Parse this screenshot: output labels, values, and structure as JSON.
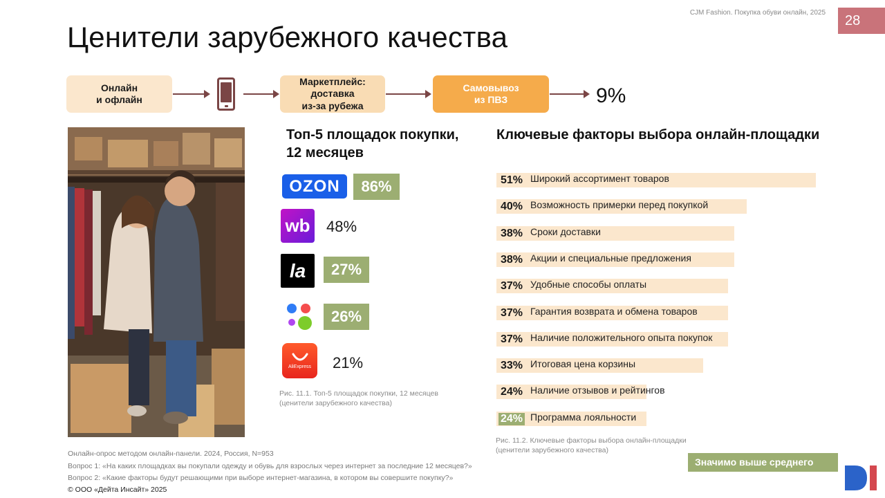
{
  "header": {
    "note": "CJM Fashion. Покупка обуви онлайн, 2025",
    "page_number": "28"
  },
  "title": "Ценители зарубежного качества",
  "flow": {
    "step1": [
      "Онлайн",
      "и офлайн"
    ],
    "step3": [
      "Маркетплейс:",
      "доставка",
      "из-за рубежа"
    ],
    "step4": [
      "Самовывоз",
      "из ПВЗ"
    ],
    "percent": "9%"
  },
  "platforms": {
    "title": [
      "Топ-5 площадок покупки,",
      "12 месяцев"
    ],
    "items": [
      {
        "logo": "ozon-logo",
        "logo_text": "OZON",
        "value": "86%",
        "highlight": true
      },
      {
        "logo": "wildberries-logo",
        "logo_text": "wb",
        "value": "48%",
        "highlight": false
      },
      {
        "logo": "lamoda-logo",
        "logo_text": "la",
        "value": "27%",
        "highlight": true
      },
      {
        "logo": "yandex-market-logo",
        "logo_text": "",
        "value": "26%",
        "highlight": true
      },
      {
        "logo": "aliexpress-logo",
        "logo_text": "AliExpress",
        "value": "21%",
        "highlight": false
      }
    ],
    "caption": [
      "Рис. 11.1. Топ-5 площадок покупки, 12 месяцев",
      "(ценители зарубежного качества)"
    ]
  },
  "chart_data": {
    "type": "bar",
    "title": "Ключевые факторы выбора онлайн-площадки",
    "categories": [
      "Широкий ассортимент товаров",
      "Возможность примерки перед покупкой",
      "Сроки доставки",
      "Акции и специальные предложения",
      "Удобные способы оплаты",
      "Гарантия возврата и обмена товаров",
      "Наличие положительного опыта покупок",
      "Итоговая цена корзины",
      "Наличие отзывов и рейтингов",
      "Программа лояльности"
    ],
    "values": [
      51,
      40,
      38,
      38,
      37,
      37,
      37,
      33,
      24,
      24
    ],
    "labels": [
      "51%",
      "40%",
      "38%",
      "38%",
      "37%",
      "37%",
      "37%",
      "33%",
      "24%",
      "24%"
    ],
    "highlight": [
      false,
      false,
      false,
      false,
      false,
      false,
      false,
      false,
      false,
      true
    ],
    "caption": [
      "Рис. 11.2. Ключевые факторы выбора онлайн-площадки",
      "(ценители зарубежного качества)"
    ]
  },
  "legend": {
    "label": "Значимо выше среднего",
    "color": "#9cae72"
  },
  "footer": {
    "method": "Онлайн-опрос методом онлайн-панели. 2024, Россия, N=953",
    "q1": "Вопрос 1: «На каких площадках вы покупали одежду и обувь для взрослых через интернет за последние 12 месяцев?»",
    "q2": "Вопрос 2: «Какие факторы будут решающими при выборе интернет-магазина, в котором вы совершите покупку?»",
    "copyright": "© ООО «Дейта Инсайт» 2025"
  },
  "colors": {
    "accent": "#c9737a",
    "highlight": "#9cae72",
    "bar": "#fbe7cd",
    "orange": "#f5ab4b"
  }
}
